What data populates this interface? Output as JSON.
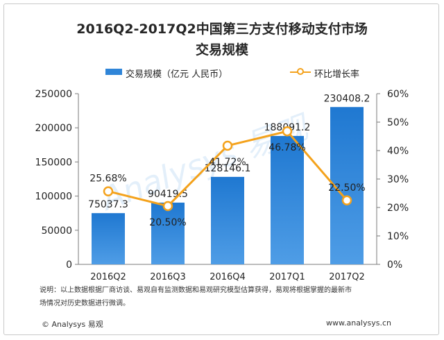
{
  "header": {
    "title_line1": "2016Q2-2017Q2中国第三方支付移动支付市场",
    "title_line2": "交易规模"
  },
  "chart_data": {
    "type": "bar",
    "categories": [
      "2016Q2",
      "2016Q3",
      "2016Q4",
      "2017Q1",
      "2017Q2"
    ],
    "series": [
      {
        "name": "交易规模（亿元 人民币）",
        "type": "bar",
        "axis": "left",
        "values": [
          75037.3,
          90419.5,
          128146.1,
          188091.2,
          230408.2
        ],
        "labels": [
          "75037.3",
          "90419.5",
          "128146.1",
          "188091.2",
          "230408.2"
        ]
      },
      {
        "name": "环比增长率",
        "type": "line",
        "axis": "right",
        "values": [
          25.68,
          20.5,
          41.72,
          46.78,
          22.5
        ],
        "labels": [
          "25.68%",
          "20.50%",
          "41.72%",
          "46.78%",
          "22.50%"
        ]
      }
    ],
    "y_left": {
      "range": [
        0,
        250000
      ],
      "ticks": [
        "0",
        "50000",
        "100000",
        "150000",
        "200000",
        "250000"
      ]
    },
    "y_right": {
      "range": [
        0,
        60
      ],
      "ticks": [
        "0%",
        "10%",
        "20%",
        "30%",
        "40%",
        "50%",
        "60%"
      ]
    },
    "grid": false,
    "legend_position": "top",
    "colors": {
      "bar": "#2f85d8",
      "line": "#f4a21c"
    },
    "watermark": "Analysys 易观"
  },
  "note": {
    "line1": "说明：以上数据根据厂商访谈、易观自有监测数据和易观研究模型估算获得，易观将根据掌握的最新市",
    "line2": "场情况对历史数据进行微调。"
  },
  "footer": {
    "brand": "© Analysys 易观",
    "url": "www.analysys.cn"
  }
}
